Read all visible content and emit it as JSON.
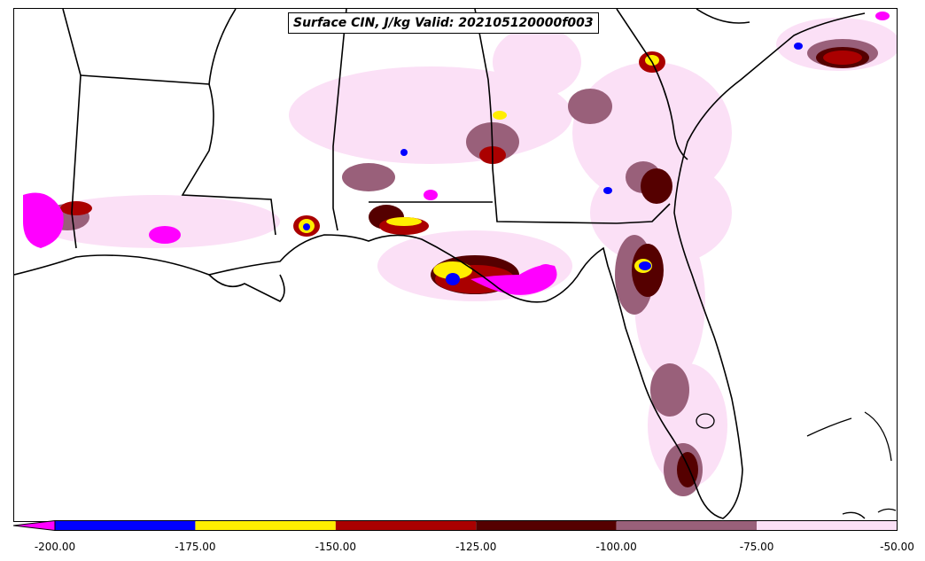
{
  "title": "Surface CIN, J/kg Valid: 202105120000f003",
  "colorbar": {
    "extend": "min",
    "bins": [
      {
        "min": -200,
        "max": -175,
        "color": "#0000ff"
      },
      {
        "min": -175,
        "max": -150,
        "color": "#ffee00"
      },
      {
        "min": -150,
        "max": -125,
        "color": "#aa0000"
      },
      {
        "min": -125,
        "max": -100,
        "color": "#550000"
      },
      {
        "min": -100,
        "max": -75,
        "color": "#99607a"
      },
      {
        "min": -75,
        "max": -50,
        "color": "#fbe0f6"
      }
    ],
    "below_color": "#ff00ff",
    "ticks": [
      "-200.00",
      "-175.00",
      "-150.00",
      "-125.00",
      "-100.00",
      "-75.00",
      "-50.00"
    ]
  }
}
